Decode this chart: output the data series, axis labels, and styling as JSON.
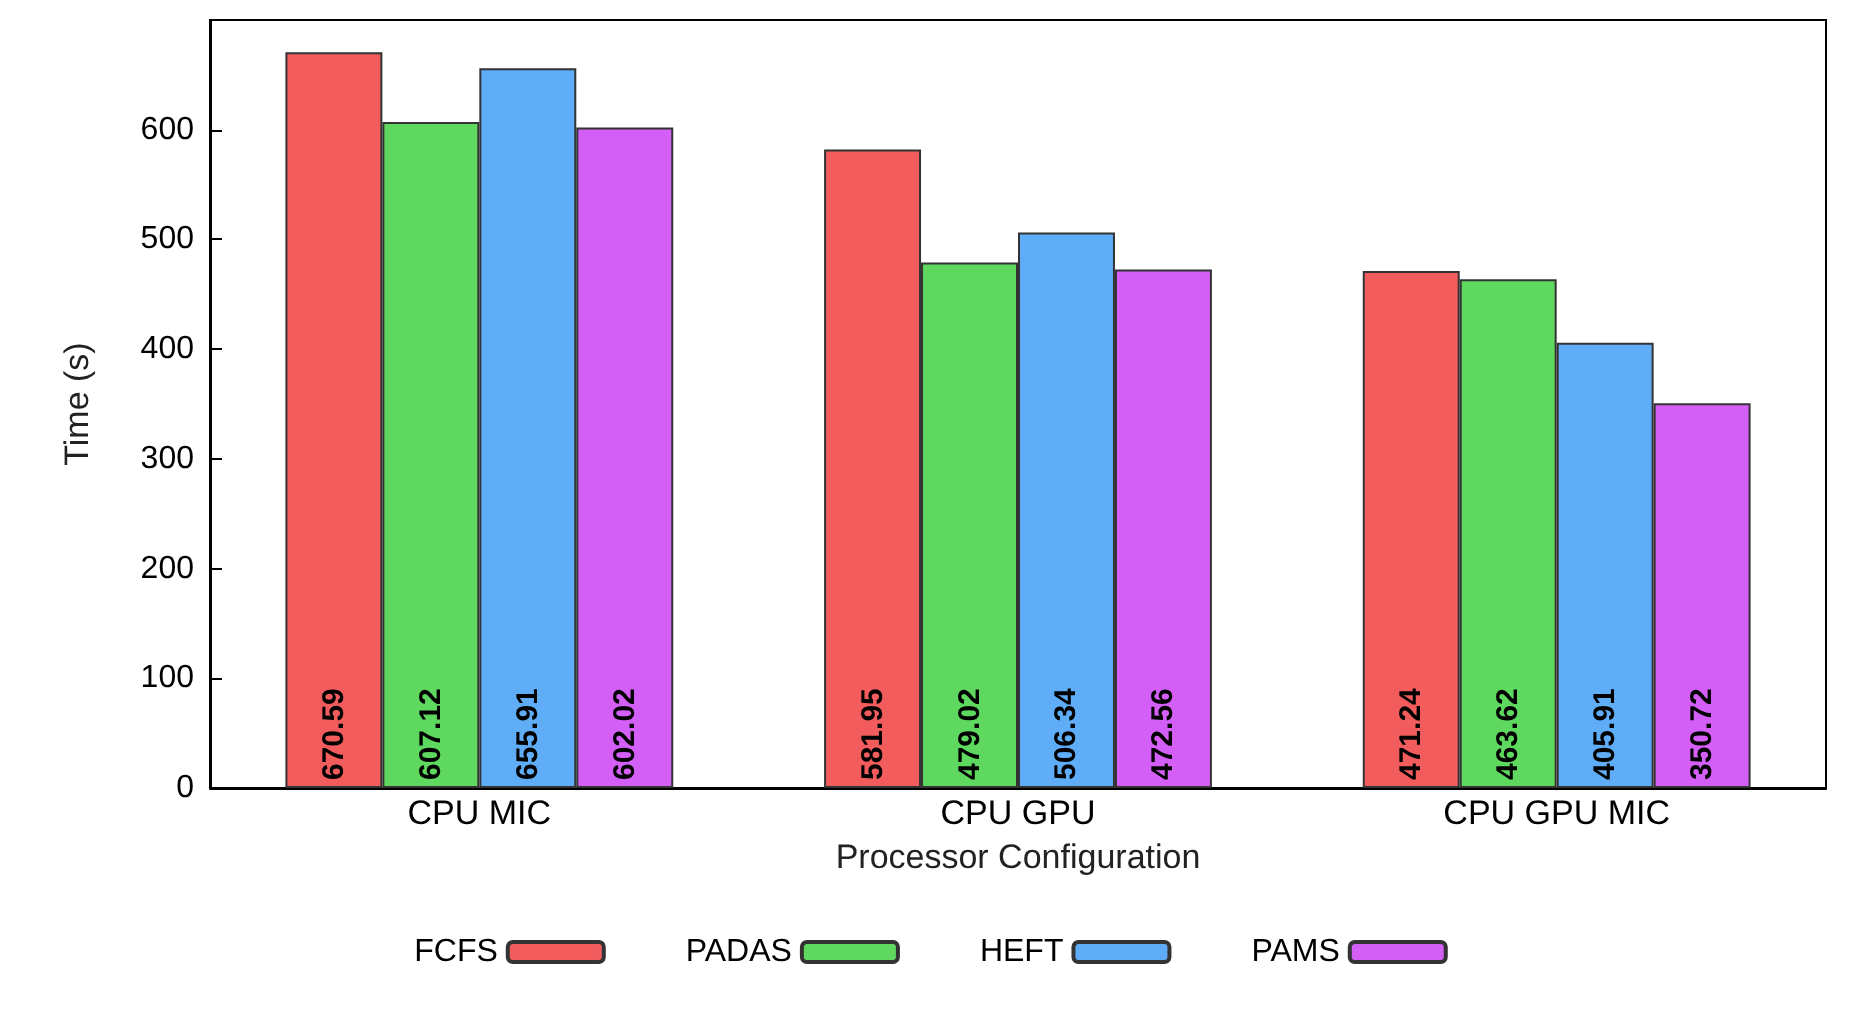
{
  "chart_data": {
    "type": "bar",
    "xlabel": "Processor Configuration",
    "ylabel": "Time (s)",
    "categories": [
      "CPU MIC",
      "CPU GPU",
      "CPU GPU MIC"
    ],
    "series": [
      {
        "name": "FCFS",
        "color": "#f25c5c",
        "values": [
          670.59,
          581.95,
          471.24
        ]
      },
      {
        "name": "PADAS",
        "color": "#5fd85f",
        "values": [
          607.12,
          479.02,
          463.62
        ]
      },
      {
        "name": "HEFT",
        "color": "#5fadf7",
        "values": [
          655.91,
          506.34,
          405.91
        ]
      },
      {
        "name": "PAMS",
        "color": "#d35ff7",
        "values": [
          602.02,
          472.56,
          350.72
        ]
      }
    ],
    "ylim": [
      0,
      700
    ],
    "yticks": [
      0,
      100,
      200,
      300,
      400,
      500,
      600
    ],
    "data_labels": true,
    "grid": false,
    "legend": "bottom"
  }
}
